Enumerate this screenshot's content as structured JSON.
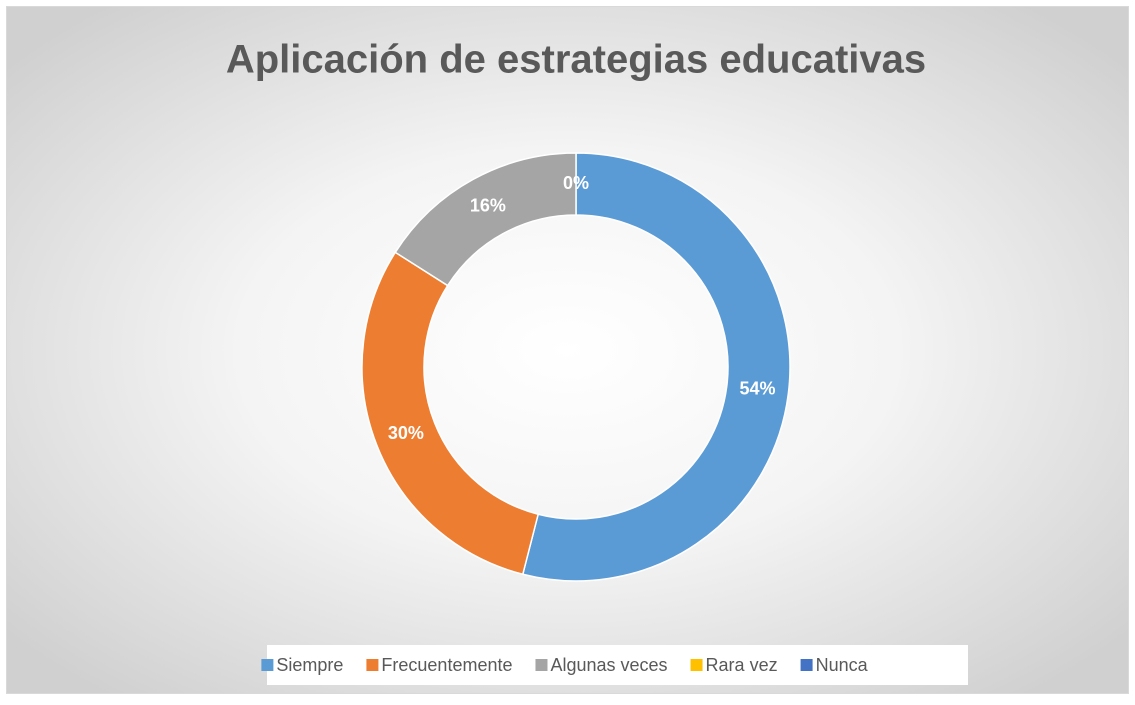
{
  "chart_data": {
    "type": "donut",
    "title": "Aplicación de estrategias educativas",
    "categories": [
      "Siempre",
      "Frecuentemente",
      "Algunas veces",
      "Rara vez",
      "Nunca"
    ],
    "values": [
      54,
      30,
      16,
      0,
      0
    ],
    "value_labels": [
      "54%",
      "30%",
      "16%",
      "0%",
      null
    ],
    "colors": [
      "#5b9bd5",
      "#ed7d31",
      "#a5a5a5",
      "#ffc000",
      "#4472c4"
    ],
    "legend": "bottom"
  }
}
